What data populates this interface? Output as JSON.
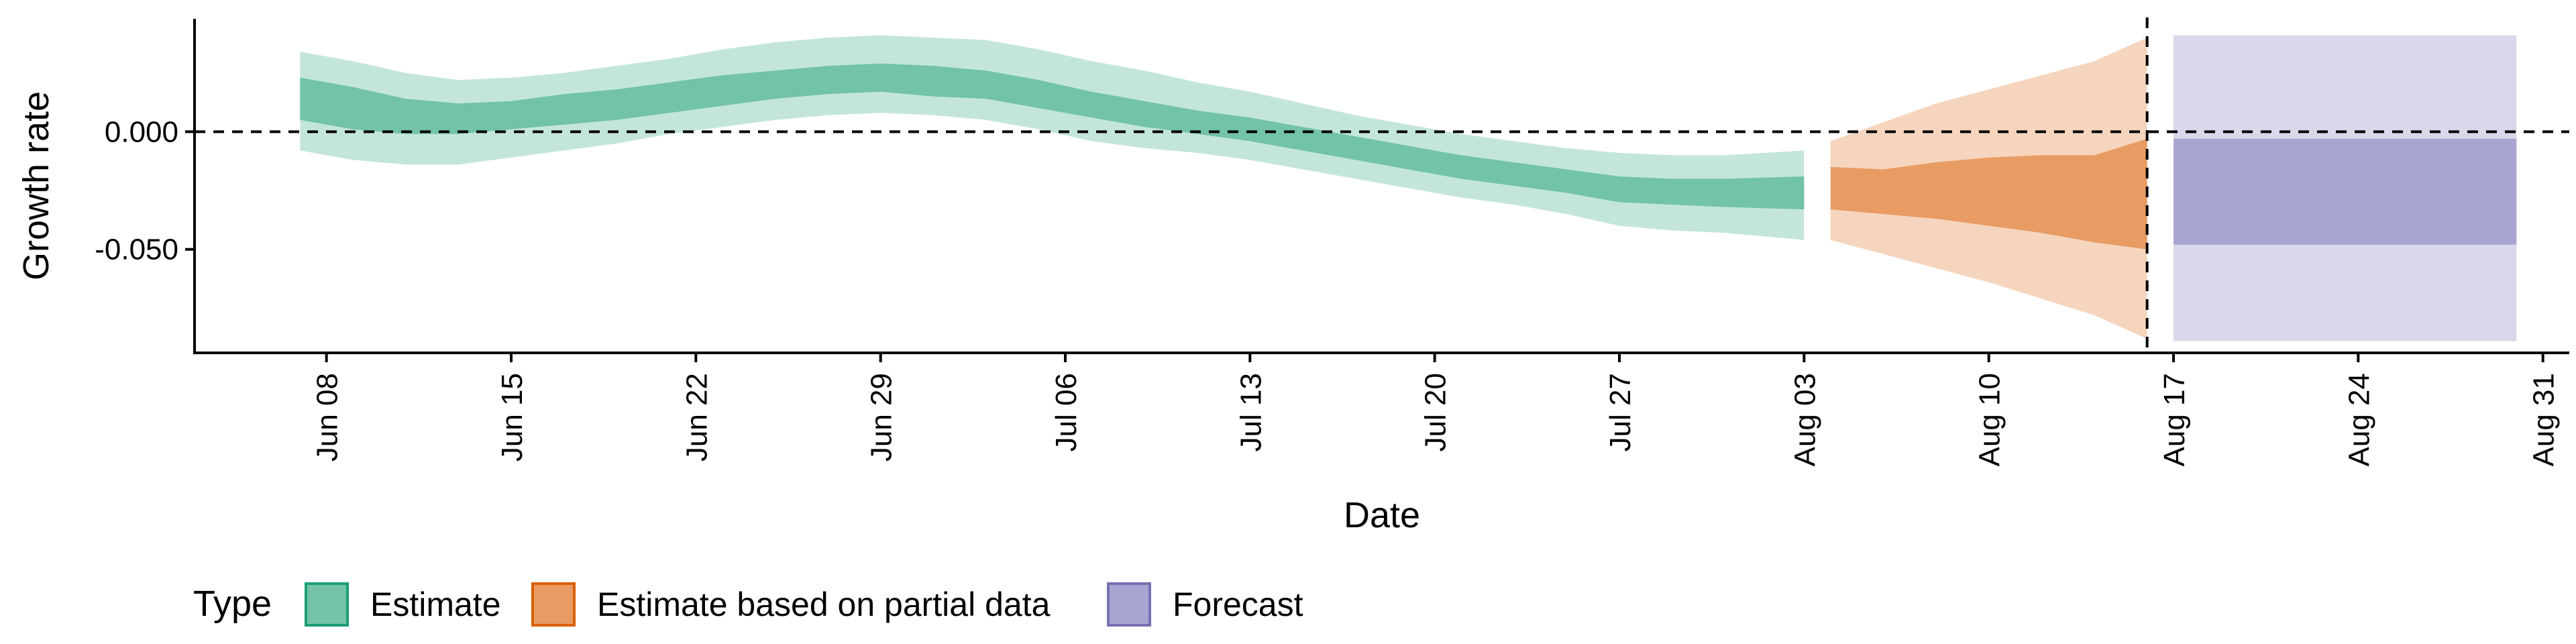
{
  "chart_data": {
    "type": "area",
    "title": "",
    "xlabel": "Date",
    "ylabel": "Growth rate",
    "x_range": [
      "2020-06-03",
      "2020-09-01"
    ],
    "ylim": [
      -0.094,
      0.048
    ],
    "y_ticks": [
      {
        "value": 0.0,
        "label": "0.000"
      },
      {
        "value": -0.05,
        "label": "-0.050"
      }
    ],
    "x_ticks": [
      {
        "date": "2020-06-08",
        "label": "Jun 08"
      },
      {
        "date": "2020-06-15",
        "label": "Jun 15"
      },
      {
        "date": "2020-06-22",
        "label": "Jun 22"
      },
      {
        "date": "2020-06-29",
        "label": "Jun 29"
      },
      {
        "date": "2020-07-06",
        "label": "Jul 06"
      },
      {
        "date": "2020-07-13",
        "label": "Jul 13"
      },
      {
        "date": "2020-07-20",
        "label": "Jul 20"
      },
      {
        "date": "2020-07-27",
        "label": "Jul 27"
      },
      {
        "date": "2020-08-03",
        "label": "Aug 03"
      },
      {
        "date": "2020-08-10",
        "label": "Aug 10"
      },
      {
        "date": "2020-08-17",
        "label": "Aug 17"
      },
      {
        "date": "2020-08-24",
        "label": "Aug 24"
      },
      {
        "date": "2020-08-31",
        "label": "Aug 31"
      }
    ],
    "grid": false,
    "reference_lines": [
      {
        "axis": "y",
        "value": 0.0,
        "style": "dashed"
      },
      {
        "axis": "x",
        "date": "2020-08-16",
        "style": "dashed"
      }
    ],
    "legend": {
      "title": "Type",
      "position": "bottom-left",
      "entries": [
        {
          "label": "Estimate",
          "fill": "#72c3a7",
          "border": "#1b9e77"
        },
        {
          "label": "Estimate based on partial data",
          "fill": "#e89b63",
          "border": "#d95f02"
        },
        {
          "label": "Forecast",
          "fill": "#a8a6d0",
          "border": "#7570b3"
        }
      ]
    },
    "series": [
      {
        "name": "Estimate",
        "inner_color": "#72c3a7",
        "outer_color": "#c4e6da",
        "points": [
          {
            "date": "2020-06-07",
            "outer_low": -0.008,
            "inner_low": 0.005,
            "inner_high": 0.023,
            "outer_high": 0.034
          },
          {
            "date": "2020-06-09",
            "outer_low": -0.012,
            "inner_low": 0.001,
            "inner_high": 0.019,
            "outer_high": 0.03
          },
          {
            "date": "2020-06-11",
            "outer_low": -0.014,
            "inner_low": -0.001,
            "inner_high": 0.014,
            "outer_high": 0.025
          },
          {
            "date": "2020-06-13",
            "outer_low": -0.014,
            "inner_low": -0.001,
            "inner_high": 0.012,
            "outer_high": 0.022
          },
          {
            "date": "2020-06-15",
            "outer_low": -0.011,
            "inner_low": 0.001,
            "inner_high": 0.013,
            "outer_high": 0.023
          },
          {
            "date": "2020-06-17",
            "outer_low": -0.008,
            "inner_low": 0.003,
            "inner_high": 0.016,
            "outer_high": 0.025
          },
          {
            "date": "2020-06-19",
            "outer_low": -0.005,
            "inner_low": 0.005,
            "inner_high": 0.018,
            "outer_high": 0.028
          },
          {
            "date": "2020-06-21",
            "outer_low": -0.001,
            "inner_low": 0.008,
            "inner_high": 0.021,
            "outer_high": 0.031
          },
          {
            "date": "2020-06-23",
            "outer_low": 0.002,
            "inner_low": 0.011,
            "inner_high": 0.024,
            "outer_high": 0.035
          },
          {
            "date": "2020-06-25",
            "outer_low": 0.005,
            "inner_low": 0.014,
            "inner_high": 0.026,
            "outer_high": 0.038
          },
          {
            "date": "2020-06-27",
            "outer_low": 0.007,
            "inner_low": 0.016,
            "inner_high": 0.028,
            "outer_high": 0.04
          },
          {
            "date": "2020-06-29",
            "outer_low": 0.008,
            "inner_low": 0.017,
            "inner_high": 0.029,
            "outer_high": 0.041
          },
          {
            "date": "2020-07-01",
            "outer_low": 0.007,
            "inner_low": 0.015,
            "inner_high": 0.028,
            "outer_high": 0.04
          },
          {
            "date": "2020-07-03",
            "outer_low": 0.005,
            "inner_low": 0.014,
            "inner_high": 0.026,
            "outer_high": 0.039
          },
          {
            "date": "2020-07-05",
            "outer_low": 0.001,
            "inner_low": 0.01,
            "inner_high": 0.022,
            "outer_high": 0.035
          },
          {
            "date": "2020-07-07",
            "outer_low": -0.004,
            "inner_low": 0.006,
            "inner_high": 0.017,
            "outer_high": 0.03
          },
          {
            "date": "2020-07-09",
            "outer_low": -0.007,
            "inner_low": 0.002,
            "inner_high": 0.013,
            "outer_high": 0.026
          },
          {
            "date": "2020-07-11",
            "outer_low": -0.009,
            "inner_low": -0.001,
            "inner_high": 0.009,
            "outer_high": 0.021
          },
          {
            "date": "2020-07-13",
            "outer_low": -0.012,
            "inner_low": -0.004,
            "inner_high": 0.006,
            "outer_high": 0.017
          },
          {
            "date": "2020-07-15",
            "outer_low": -0.016,
            "inner_low": -0.008,
            "inner_high": 0.002,
            "outer_high": 0.012
          },
          {
            "date": "2020-07-17",
            "outer_low": -0.02,
            "inner_low": -0.012,
            "inner_high": -0.002,
            "outer_high": 0.007
          },
          {
            "date": "2020-07-19",
            "outer_low": -0.024,
            "inner_low": -0.016,
            "inner_high": -0.006,
            "outer_high": 0.003
          },
          {
            "date": "2020-07-21",
            "outer_low": -0.028,
            "inner_low": -0.02,
            "inner_high": -0.01,
            "outer_high": -0.001
          },
          {
            "date": "2020-07-23",
            "outer_low": -0.031,
            "inner_low": -0.023,
            "inner_high": -0.013,
            "outer_high": -0.004
          },
          {
            "date": "2020-07-25",
            "outer_low": -0.035,
            "inner_low": -0.026,
            "inner_high": -0.016,
            "outer_high": -0.007
          },
          {
            "date": "2020-07-27",
            "outer_low": -0.04,
            "inner_low": -0.03,
            "inner_high": -0.019,
            "outer_high": -0.009
          },
          {
            "date": "2020-07-29",
            "outer_low": -0.042,
            "inner_low": -0.031,
            "inner_high": -0.02,
            "outer_high": -0.01
          },
          {
            "date": "2020-07-31",
            "outer_low": -0.043,
            "inner_low": -0.032,
            "inner_high": -0.02,
            "outer_high": -0.01
          },
          {
            "date": "2020-08-03",
            "outer_low": -0.046,
            "inner_low": -0.033,
            "inner_high": -0.019,
            "outer_high": -0.008
          }
        ]
      },
      {
        "name": "Estimate based on partial data",
        "inner_color": "#e89b63",
        "outer_color": "#f6d5be",
        "points": [
          {
            "date": "2020-08-04",
            "outer_low": -0.046,
            "inner_low": -0.033,
            "inner_high": -0.015,
            "outer_high": -0.004
          },
          {
            "date": "2020-08-06",
            "outer_low": -0.052,
            "inner_low": -0.035,
            "inner_high": -0.016,
            "outer_high": 0.004
          },
          {
            "date": "2020-08-08",
            "outer_low": -0.058,
            "inner_low": -0.037,
            "inner_high": -0.013,
            "outer_high": 0.012
          },
          {
            "date": "2020-08-10",
            "outer_low": -0.064,
            "inner_low": -0.04,
            "inner_high": -0.011,
            "outer_high": 0.018
          },
          {
            "date": "2020-08-12",
            "outer_low": -0.071,
            "inner_low": -0.043,
            "inner_high": -0.01,
            "outer_high": 0.024
          },
          {
            "date": "2020-08-14",
            "outer_low": -0.078,
            "inner_low": -0.047,
            "inner_high": -0.01,
            "outer_high": 0.03
          },
          {
            "date": "2020-08-16",
            "outer_low": -0.088,
            "inner_low": -0.05,
            "inner_high": -0.003,
            "outer_high": 0.04
          }
        ]
      },
      {
        "name": "Forecast",
        "inner_color": "#a8a6d0",
        "outer_color": "#d9d8ea",
        "points": [
          {
            "date": "2020-08-17",
            "outer_low": -0.089,
            "inner_low": -0.048,
            "inner_high": -0.003,
            "outer_high": 0.041
          },
          {
            "date": "2020-08-30",
            "outer_low": -0.089,
            "inner_low": -0.048,
            "inner_high": -0.003,
            "outer_high": 0.041
          }
        ]
      }
    ]
  }
}
